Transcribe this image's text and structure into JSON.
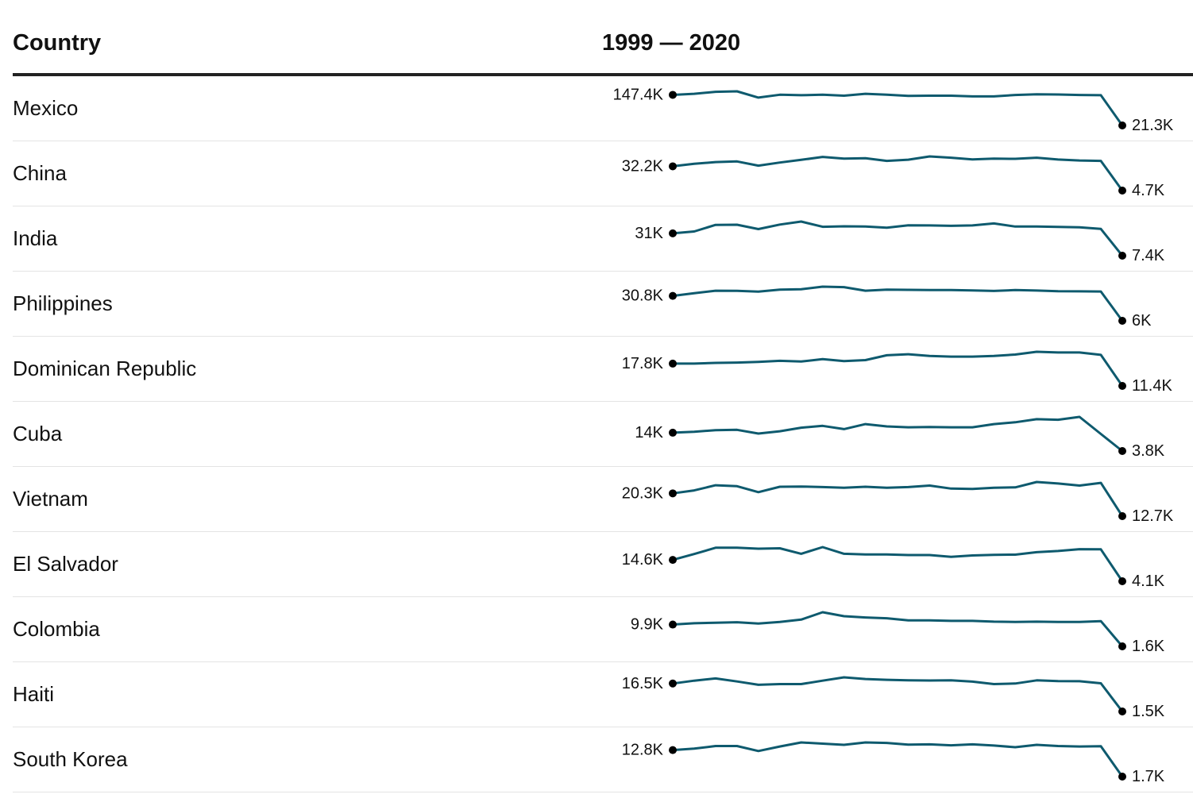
{
  "header": {
    "country_label": "Country",
    "range_label": "1999 — 2020"
  },
  "colors": {
    "line": "#0e5a6e",
    "dot": "#000000"
  },
  "chart_data": {
    "type": "table",
    "x": [
      1999,
      2000,
      2001,
      2002,
      2003,
      2004,
      2005,
      2006,
      2007,
      2008,
      2009,
      2010,
      2011,
      2012,
      2013,
      2014,
      2015,
      2016,
      2017,
      2018,
      2019,
      2020
    ],
    "rows": [
      {
        "country": "Mexico",
        "start_label": "147.4K",
        "end_label": "21.3K",
        "values": [
          147.4,
          152,
          160,
          162,
          136,
          148,
          146,
          148,
          144,
          152,
          148,
          143,
          144,
          144,
          141,
          141,
          147,
          150,
          149,
          147,
          146,
          21.3
        ]
      },
      {
        "country": "China",
        "start_label": "32.2K",
        "end_label": "4.7K",
        "values": [
          32.2,
          35,
          37,
          37.7,
          33,
          36.5,
          39.5,
          42.9,
          41,
          41.4,
          38.4,
          39.7,
          43.4,
          42,
          40,
          40.9,
          40.7,
          42,
          39.9,
          38.8,
          38.4,
          4.7
        ]
      },
      {
        "country": "India",
        "start_label": "31K",
        "end_label": "7.4K",
        "values": [
          31,
          33,
          40,
          40.1,
          35.5,
          40.3,
          43.5,
          38,
          38.5,
          38.2,
          37,
          39.5,
          39.4,
          39,
          39.4,
          41.5,
          38.2,
          38.2,
          37.8,
          37.4,
          35.7,
          7.4
        ]
      },
      {
        "country": "Philippines",
        "start_label": "30.8K",
        "end_label": "6K",
        "values": [
          30.8,
          33.5,
          36,
          35.8,
          35,
          37,
          37.5,
          40,
          39.5,
          36,
          37,
          36.8,
          36.7,
          36.7,
          36.3,
          35.7,
          36.6,
          36.1,
          35.5,
          35.3,
          35.2,
          6
        ]
      },
      {
        "country": "Dominican Republic",
        "start_label": "17.8K",
        "end_label": "11.4K",
        "values": [
          17.8,
          17.8,
          18,
          18.1,
          18.3,
          18.6,
          18.4,
          19.1,
          18.5,
          18.8,
          20.2,
          20.5,
          20,
          19.8,
          19.8,
          20,
          20.4,
          21.2,
          21,
          21,
          20.3,
          11.4
        ]
      },
      {
        "country": "Cuba",
        "start_label": "14K",
        "end_label": "3.8K",
        "values": [
          14,
          14.5,
          15.4,
          15.6,
          13.5,
          14.8,
          16.8,
          17.8,
          16,
          18.8,
          17.5,
          17,
          17.2,
          17,
          17,
          18.8,
          19.8,
          21.5,
          21.2,
          22.8,
          13.3,
          3.8
        ]
      },
      {
        "country": "Vietnam",
        "start_label": "20.3K",
        "end_label": "12.7K",
        "values": [
          20.3,
          21.3,
          23,
          22.7,
          20.7,
          22.5,
          22.6,
          22.4,
          22.2,
          22.5,
          22.2,
          22.4,
          22.9,
          21.9,
          21.8,
          22.2,
          22.3,
          24.1,
          23.6,
          22.9,
          23.8,
          12.7
        ]
      },
      {
        "country": "El Salvador",
        "start_label": "14.6K",
        "end_label": "4.1K",
        "values": [
          14.6,
          17.5,
          20.6,
          20.6,
          20.1,
          20.3,
          17.6,
          20.9,
          17.6,
          17.3,
          17.3,
          17,
          17,
          16.1,
          16.8,
          17.1,
          17.2,
          18.4,
          19,
          19.9,
          19.8,
          4.1
        ]
      },
      {
        "country": "Colombia",
        "start_label": "9.9K",
        "end_label": "1.6K",
        "values": [
          9.9,
          10.4,
          10.6,
          10.8,
          10.3,
          10.9,
          11.8,
          14.6,
          13.1,
          12.6,
          12.3,
          11.5,
          11.5,
          11.3,
          11.3,
          11,
          10.9,
          11,
          10.9,
          10.9,
          11.2,
          1.6
        ]
      },
      {
        "country": "Haiti",
        "start_label": "16.5K",
        "end_label": "1.5K",
        "values": [
          16.5,
          18,
          19.2,
          17.6,
          15.8,
          16.2,
          16.2,
          18,
          19.8,
          18.9,
          18.5,
          18.2,
          18.1,
          18.2,
          17.5,
          16.2,
          16.5,
          18.2,
          17.8,
          17.7,
          16.6,
          1.5
        ]
      },
      {
        "country": "South Korea",
        "start_label": "12.8K",
        "end_label": "1.7K",
        "values": [
          12.8,
          13.4,
          14.5,
          14.5,
          12.4,
          14.3,
          16,
          15.5,
          15,
          16,
          15.8,
          15.1,
          15.2,
          14.8,
          15.2,
          14.7,
          14,
          15,
          14.5,
          14.3,
          14.4,
          1.7
        ]
      }
    ]
  }
}
